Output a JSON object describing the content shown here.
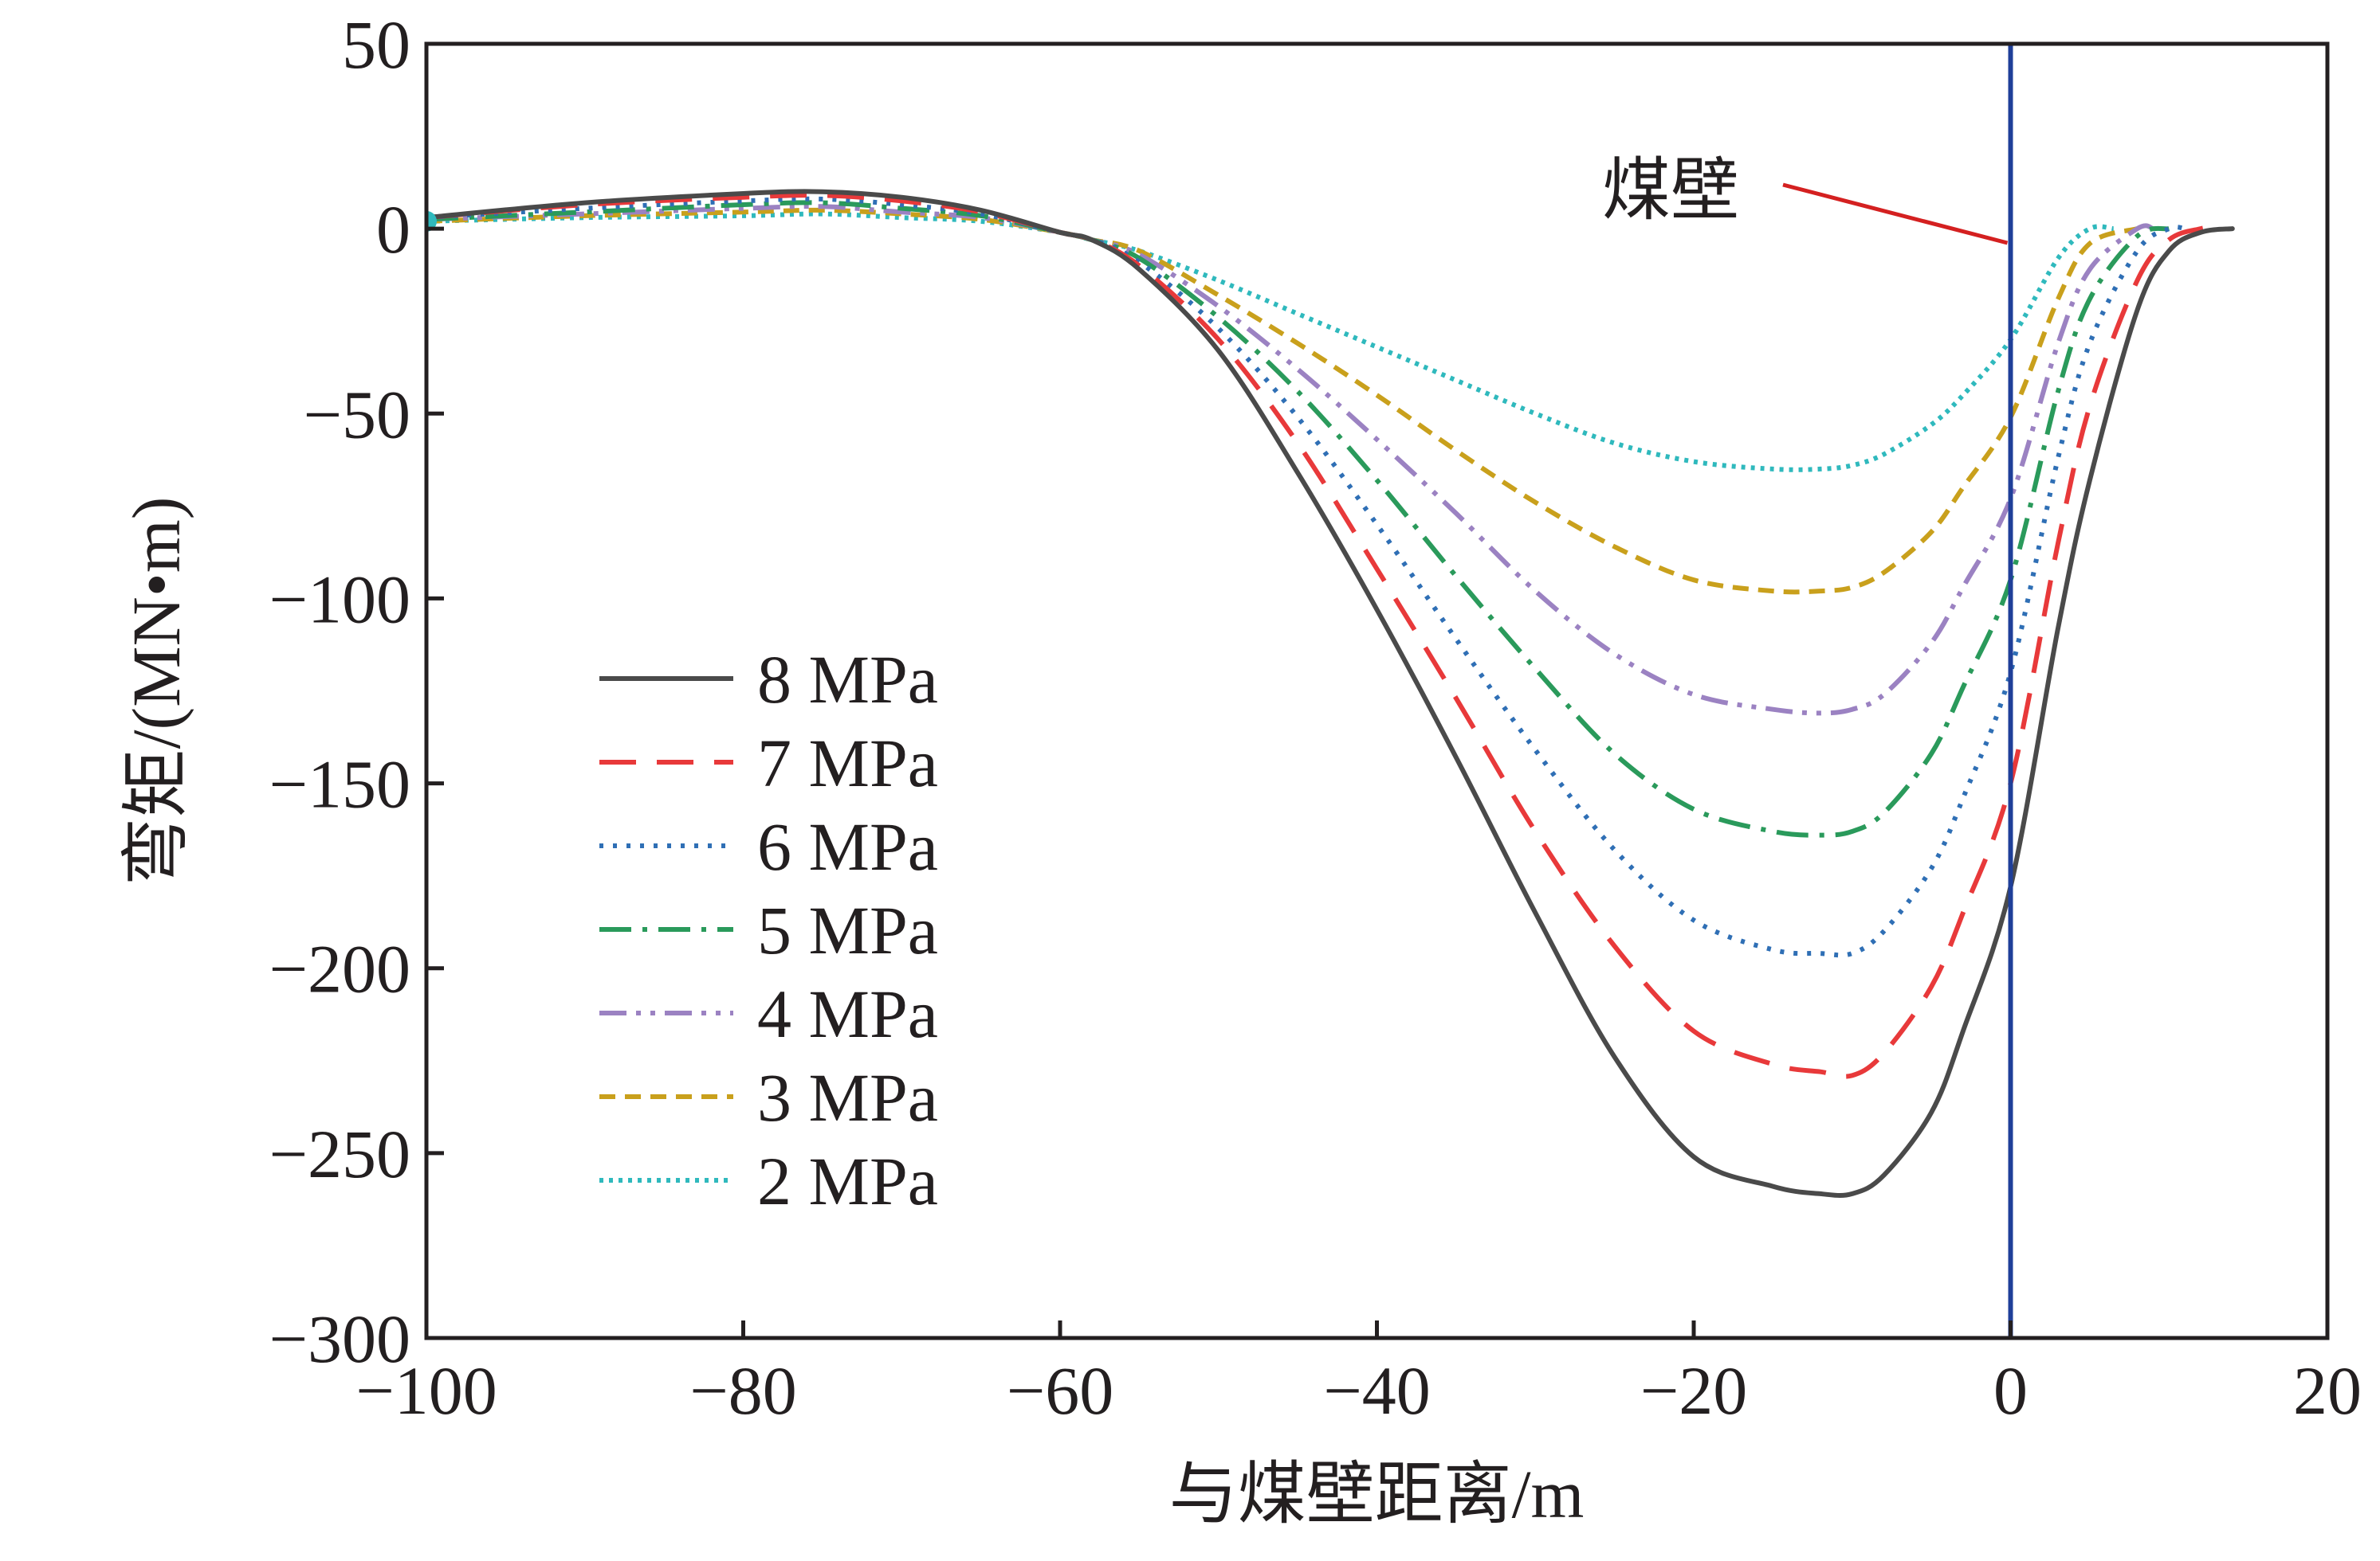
{
  "chart_data": {
    "type": "line",
    "xlabel": "与煤壁距离/m",
    "ylabel": "弯矩/(MN•m)",
    "xlim": [
      -100,
      20
    ],
    "ylim": [
      -300,
      50
    ],
    "xticks": [
      -100,
      -80,
      -60,
      -40,
      -20,
      0,
      20
    ],
    "yticks": [
      50,
      0,
      -50,
      -100,
      -150,
      -200,
      -250,
      -300
    ],
    "xtick_labels": [
      "−100",
      "−80",
      "−60",
      "−40",
      "−20",
      "0",
      "20"
    ],
    "ytick_labels": [
      "50",
      "0",
      "−50",
      "−100",
      "−150",
      "−200",
      "−250",
      "−300"
    ],
    "grid": false,
    "legend_position": "left",
    "x": [
      -100,
      -90,
      -80,
      -75,
      -70,
      -65,
      -60,
      -58,
      -55,
      -50,
      -45,
      -40,
      -35,
      -30,
      -25,
      -20,
      -15,
      -12,
      -10,
      -8,
      -5,
      -3,
      0,
      3,
      5,
      8,
      10,
      12,
      14
    ],
    "series": [
      {
        "name": "8 MPa",
        "color": "#4a4a4a",
        "style": "solid",
        "values": [
          3,
          7,
          9.5,
          10,
          8.5,
          5,
          -1,
          -3,
          -11,
          -33,
          -66,
          -103,
          -143,
          -185,
          -224,
          -251,
          -259,
          -261,
          -261,
          -256,
          -239,
          -217,
          -178,
          -108,
          -68,
          -22,
          -6,
          -1,
          0
        ],
        "end_x": 14
      },
      {
        "name": "7 MPa",
        "color": "#e8393a",
        "style": "dashed",
        "values": [
          3,
          6.5,
          8.5,
          9,
          7.5,
          4.5,
          -1,
          -3,
          -10,
          -30,
          -58,
          -92,
          -127,
          -163,
          -194,
          -217,
          -226,
          -228,
          -229,
          -223,
          -205,
          -185,
          -150,
          -85,
          -48,
          -14,
          -3,
          0,
          0
        ],
        "end_x": 12.5
      },
      {
        "name": "6 MPa",
        "color": "#2f6fb5",
        "style": "dotted",
        "values": [
          3,
          5.5,
          7.5,
          8,
          6.5,
          4,
          -1,
          -3,
          -9,
          -27,
          -51,
          -80,
          -111,
          -141,
          -168,
          -187,
          -195,
          -196,
          -196,
          -190,
          -173,
          -154,
          -120,
          -62,
          -31,
          -6,
          0,
          0,
          0
        ],
        "end_x": 11
      },
      {
        "name": "5 MPa",
        "color": "#2a9a5b",
        "style": "dashdot",
        "values": [
          2.5,
          4.5,
          6.5,
          7,
          5.5,
          3.5,
          -1,
          -3,
          -8,
          -24,
          -44,
          -68,
          -94,
          -119,
          -142,
          -157,
          -163,
          -164,
          -163,
          -158,
          -142,
          -124,
          -95,
          -44,
          -19,
          -2,
          0,
          0,
          0
        ],
        "end_x": 10
      },
      {
        "name": "4 MPa",
        "color": "#9b82c2",
        "style": "dashdotdot",
        "values": [
          2.5,
          4,
          5.5,
          6,
          4.5,
          3,
          -1,
          -3,
          -7,
          -21,
          -38,
          -57,
          -77,
          -98,
          -115,
          -126,
          -130,
          -131,
          -130,
          -126,
          -112,
          -97,
          -73,
          -31,
          -11,
          0,
          0,
          0,
          0
        ],
        "end_x": 9
      },
      {
        "name": "3 MPa",
        "color": "#c9a01c",
        "style": "shortdash",
        "values": [
          2,
          3.5,
          4.5,
          5,
          4,
          2.5,
          -1,
          -3,
          -6,
          -18,
          -31,
          -45,
          -60,
          -74,
          -86,
          -95,
          -98,
          -98,
          -97,
          -93,
          -82,
          -70,
          -51,
          -19,
          -4,
          0,
          0,
          0,
          0
        ],
        "end_x": 8
      },
      {
        "name": "2 MPa",
        "color": "#2fb9bd",
        "style": "densedot",
        "values": [
          2,
          3,
          3.5,
          4,
          3,
          2,
          -1,
          -3,
          -6,
          -14,
          -23,
          -32,
          -41,
          -50,
          -58,
          -63,
          -65,
          -65,
          -64,
          -61,
          -53,
          -45,
          -30,
          -8,
          0,
          0,
          0,
          0,
          0
        ],
        "end_x": 6.5
      }
    ],
    "reference_line": {
      "x": 0,
      "color": "#1f3f99"
    },
    "annotation": {
      "text": "煤壁",
      "color": "#d42020"
    }
  }
}
